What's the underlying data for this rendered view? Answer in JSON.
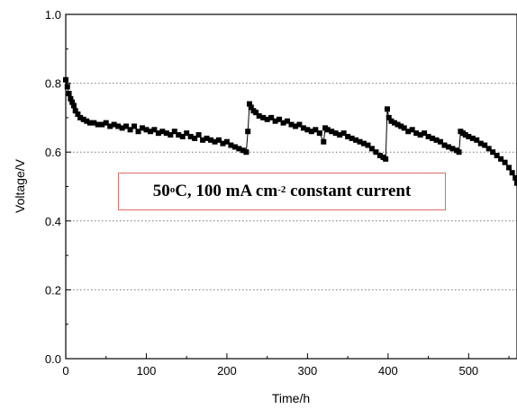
{
  "chart_data": {
    "type": "scatter",
    "title": "",
    "xlabel": "Time/h",
    "ylabel": "Voltage/V",
    "xlim": [
      0,
      560
    ],
    "ylim": [
      0.0,
      1.0
    ],
    "x_ticks": [
      0,
      100,
      200,
      300,
      400,
      500
    ],
    "x_tick_labels": [
      "0",
      "100",
      "200",
      "300",
      "400",
      "500"
    ],
    "y_ticks": [
      0.0,
      0.2,
      0.4,
      0.6,
      0.8,
      1.0
    ],
    "y_tick_labels": [
      "0.0",
      "0.2",
      "0.4",
      "0.6",
      "0.8",
      "1.0"
    ],
    "grid": "horizontal-dotted",
    "marker_color": "#000000",
    "annotation": {
      "prefix": "50",
      "sup1": "o",
      "mid": "C, 100 mA cm",
      "sup2": "-2",
      "suffix": " constant current",
      "border_color": "#e06a6a"
    },
    "series": [
      {
        "values": [
          [
            0,
            0.81
          ],
          [
            2,
            0.79
          ],
          [
            4,
            0.77
          ],
          [
            6,
            0.755
          ],
          [
            8,
            0.745
          ],
          [
            10,
            0.735
          ],
          [
            12,
            0.72
          ],
          [
            15,
            0.71
          ],
          [
            18,
            0.7
          ],
          [
            22,
            0.695
          ],
          [
            26,
            0.69
          ],
          [
            30,
            0.685
          ],
          [
            35,
            0.685
          ],
          [
            40,
            0.68
          ],
          [
            45,
            0.68
          ],
          [
            50,
            0.685
          ],
          [
            55,
            0.675
          ],
          [
            60,
            0.68
          ],
          [
            65,
            0.675
          ],
          [
            70,
            0.67
          ],
          [
            75,
            0.675
          ],
          [
            80,
            0.665
          ],
          [
            85,
            0.675
          ],
          [
            90,
            0.66
          ],
          [
            95,
            0.67
          ],
          [
            100,
            0.665
          ],
          [
            105,
            0.66
          ],
          [
            110,
            0.665
          ],
          [
            115,
            0.655
          ],
          [
            120,
            0.66
          ],
          [
            125,
            0.655
          ],
          [
            130,
            0.65
          ],
          [
            135,
            0.66
          ],
          [
            140,
            0.65
          ],
          [
            145,
            0.645
          ],
          [
            150,
            0.655
          ],
          [
            155,
            0.645
          ],
          [
            160,
            0.64
          ],
          [
            165,
            0.65
          ],
          [
            170,
            0.635
          ],
          [
            175,
            0.64
          ],
          [
            180,
            0.635
          ],
          [
            185,
            0.63
          ],
          [
            190,
            0.635
          ],
          [
            195,
            0.625
          ],
          [
            200,
            0.63
          ],
          [
            205,
            0.62
          ],
          [
            210,
            0.615
          ],
          [
            215,
            0.61
          ],
          [
            220,
            0.605
          ],
          [
            224,
            0.6
          ],
          [
            226,
            0.66
          ],
          [
            228,
            0.74
          ],
          [
            230,
            0.73
          ],
          [
            233,
            0.72
          ],
          [
            236,
            0.715
          ],
          [
            240,
            0.705
          ],
          [
            245,
            0.7
          ],
          [
            250,
            0.695
          ],
          [
            255,
            0.7
          ],
          [
            260,
            0.69
          ],
          [
            265,
            0.695
          ],
          [
            270,
            0.685
          ],
          [
            275,
            0.69
          ],
          [
            280,
            0.68
          ],
          [
            285,
            0.675
          ],
          [
            290,
            0.68
          ],
          [
            295,
            0.67
          ],
          [
            300,
            0.665
          ],
          [
            305,
            0.66
          ],
          [
            310,
            0.665
          ],
          [
            315,
            0.655
          ],
          [
            320,
            0.63
          ],
          [
            322,
            0.67
          ],
          [
            325,
            0.665
          ],
          [
            330,
            0.66
          ],
          [
            335,
            0.655
          ],
          [
            340,
            0.65
          ],
          [
            345,
            0.655
          ],
          [
            350,
            0.645
          ],
          [
            355,
            0.64
          ],
          [
            360,
            0.635
          ],
          [
            365,
            0.63
          ],
          [
            370,
            0.625
          ],
          [
            375,
            0.62
          ],
          [
            380,
            0.61
          ],
          [
            385,
            0.6
          ],
          [
            390,
            0.59
          ],
          [
            394,
            0.585
          ],
          [
            397,
            0.58
          ],
          [
            399,
            0.725
          ],
          [
            401,
            0.7
          ],
          [
            404,
            0.69
          ],
          [
            408,
            0.685
          ],
          [
            412,
            0.68
          ],
          [
            416,
            0.675
          ],
          [
            420,
            0.67
          ],
          [
            425,
            0.66
          ],
          [
            430,
            0.665
          ],
          [
            435,
            0.655
          ],
          [
            440,
            0.65
          ],
          [
            445,
            0.655
          ],
          [
            450,
            0.645
          ],
          [
            455,
            0.64
          ],
          [
            460,
            0.635
          ],
          [
            465,
            0.63
          ],
          [
            470,
            0.62
          ],
          [
            475,
            0.615
          ],
          [
            480,
            0.61
          ],
          [
            485,
            0.605
          ],
          [
            488,
            0.6
          ],
          [
            490,
            0.66
          ],
          [
            493,
            0.655
          ],
          [
            496,
            0.65
          ],
          [
            500,
            0.645
          ],
          [
            505,
            0.64
          ],
          [
            510,
            0.635
          ],
          [
            515,
            0.625
          ],
          [
            520,
            0.62
          ],
          [
            525,
            0.61
          ],
          [
            530,
            0.6
          ],
          [
            535,
            0.59
          ],
          [
            540,
            0.58
          ],
          [
            545,
            0.57
          ],
          [
            550,
            0.555
          ],
          [
            554,
            0.54
          ],
          [
            558,
            0.525
          ],
          [
            560,
            0.51
          ]
        ]
      }
    ]
  }
}
